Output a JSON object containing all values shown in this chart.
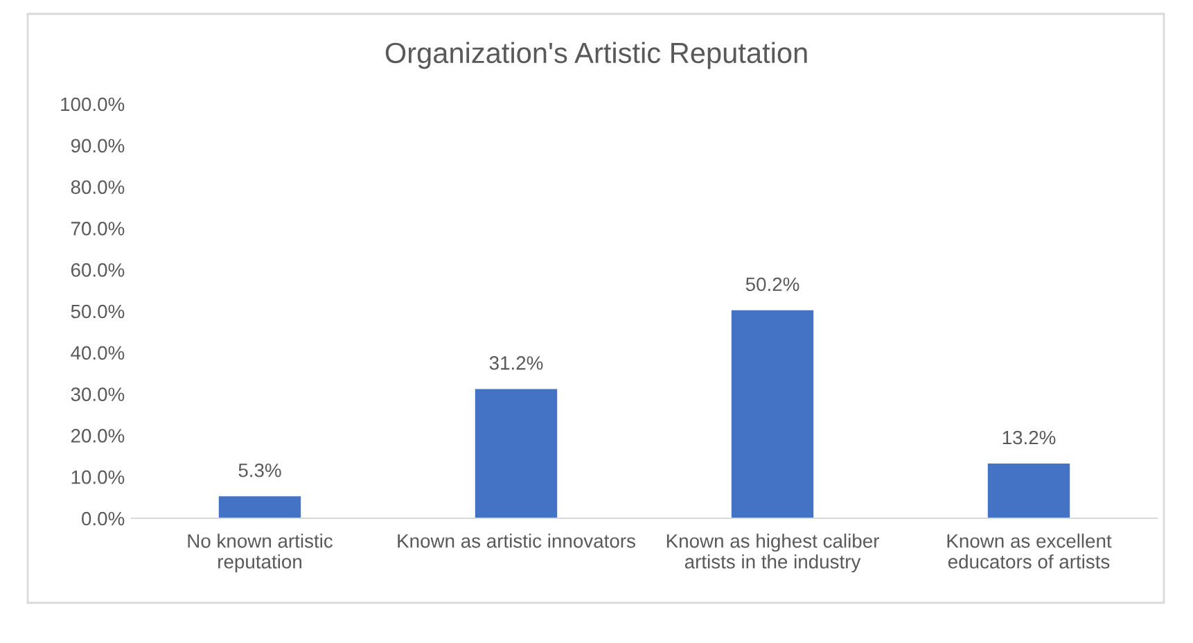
{
  "chart_data": {
    "type": "bar",
    "title": "Organization's Artistic Reputation",
    "categories": [
      "No known artistic\nreputation",
      "Known as artistic innovators",
      "Known as highest caliber\nartists in the industry",
      "Known as excellent\neducators of artists"
    ],
    "values": [
      5.3,
      31.2,
      50.2,
      13.2
    ],
    "value_labels": [
      "5.3%",
      "31.2%",
      "50.2%",
      "13.2%"
    ],
    "color": "#4472c4",
    "ylim": [
      0,
      100
    ],
    "yticks": [
      {
        "value": 0,
        "label": "0.0%"
      },
      {
        "value": 10,
        "label": "10.0%"
      },
      {
        "value": 20,
        "label": "20.0%"
      },
      {
        "value": 30,
        "label": "30.0%"
      },
      {
        "value": 40,
        "label": "40.0%"
      },
      {
        "value": 50,
        "label": "50.0%"
      },
      {
        "value": 60,
        "label": "60.0%"
      },
      {
        "value": 70,
        "label": "70.0%"
      },
      {
        "value": 80,
        "label": "80.0%"
      },
      {
        "value": 90,
        "label": "90.0%"
      },
      {
        "value": 100,
        "label": "100.0%"
      }
    ],
    "grid": false,
    "legend": false
  }
}
